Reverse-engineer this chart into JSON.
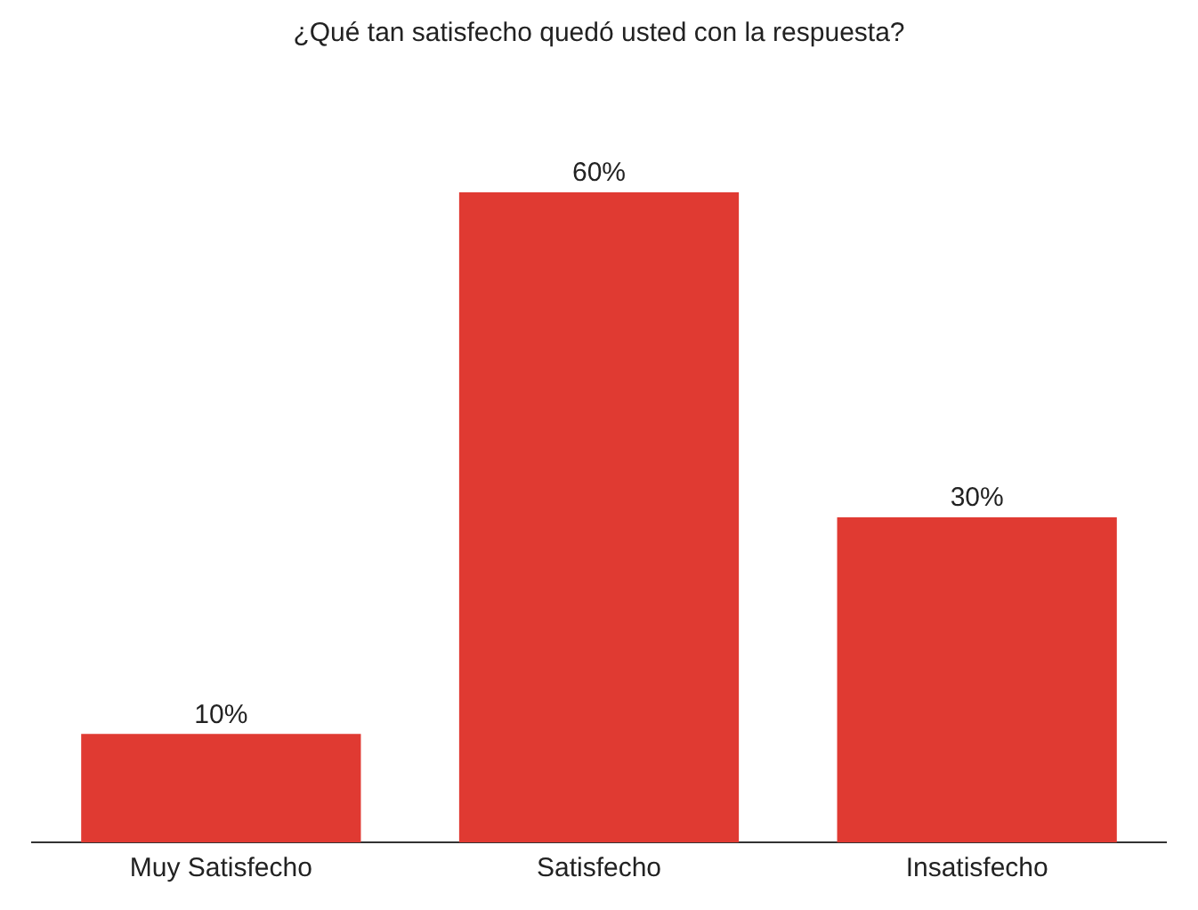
{
  "chart_data": {
    "type": "bar",
    "title": "¿Qué tan satisfecho quedó usted con la respuesta?",
    "categories": [
      "Muy Satisfecho",
      "Satisfecho",
      "Insatisfecho"
    ],
    "values": [
      10,
      60,
      30
    ],
    "value_labels": [
      "10%",
      "60%",
      "30%"
    ],
    "color": "#e03a32",
    "grid": false,
    "legend": false
  }
}
